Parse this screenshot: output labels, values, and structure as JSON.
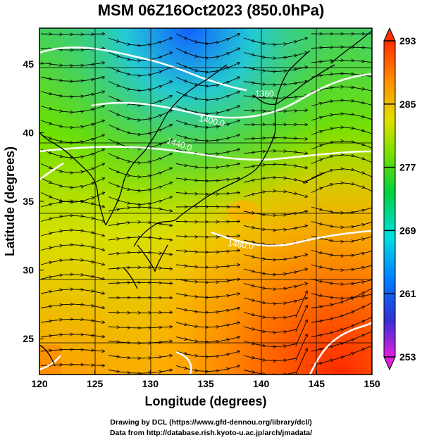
{
  "title": "MSM 06Z16Oct2023 (850.0hPa)",
  "xaxis": {
    "label": "Longitude (degrees)",
    "ticks": [
      120,
      125,
      130,
      135,
      140,
      145,
      150
    ],
    "range": [
      120,
      150
    ]
  },
  "yaxis": {
    "label": "Latitude  (degrees)",
    "ticks": [
      25,
      30,
      35,
      40,
      45
    ],
    "range": [
      22.4,
      47.6
    ]
  },
  "colorbar": {
    "ticks": [
      293,
      285,
      277,
      269,
      261,
      253
    ],
    "range": [
      253,
      293
    ],
    "colors": [
      "#e020e0",
      "#3030d0",
      "#0080ff",
      "#00e0e0",
      "#00d040",
      "#80e000",
      "#e0e000",
      "#ff9000",
      "#ff3000"
    ]
  },
  "contour_labels": [
    "1400.0",
    "1440.0",
    "1480.0",
    "1360."
  ],
  "credits": [
    "Drawing by DCL (https://www.gfd-dennou.org/library/dcl/)",
    "Data from http://database.rish.kyoto-u.ac.jp/arch/jmadata/"
  ]
}
